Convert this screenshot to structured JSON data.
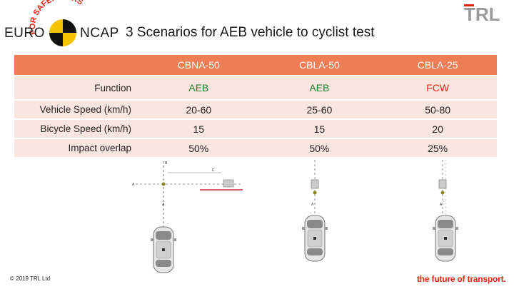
{
  "header": {
    "logo_euro": "EURO",
    "logo_ncap": "NCAP",
    "logo_arc": "FOR SAFER CARS",
    "title": "3 Scenarios for AEB vehicle to cyclist test",
    "trl_logo": "TRL"
  },
  "table": {
    "columns": [
      "CBNA-50",
      "CBLA-50",
      "CBLA-25"
    ],
    "rows": [
      {
        "label": "Function",
        "values": [
          "AEB",
          "AEB",
          "FCW"
        ]
      },
      {
        "label": "Vehicle Speed (km/h)",
        "values": [
          "20-60",
          "25-60",
          "50-80"
        ]
      },
      {
        "label": "Bicycle Speed (km/h)",
        "values": [
          "15",
          "15",
          "20"
        ]
      },
      {
        "label": "Impact overlap",
        "values": [
          "50%",
          "50%",
          "25%"
        ]
      }
    ]
  },
  "diagram": {
    "labels": [
      "A",
      "A",
      "B",
      "C",
      "A",
      "A"
    ]
  },
  "footer": {
    "copyright": "© 2019 TRL Ltd",
    "tagline": "the future of transport."
  },
  "colors": {
    "accent": "#ef7d55",
    "row_fill": "#fbe5df",
    "function_red": "#e3240f",
    "function_green": "#1f7d2e"
  }
}
